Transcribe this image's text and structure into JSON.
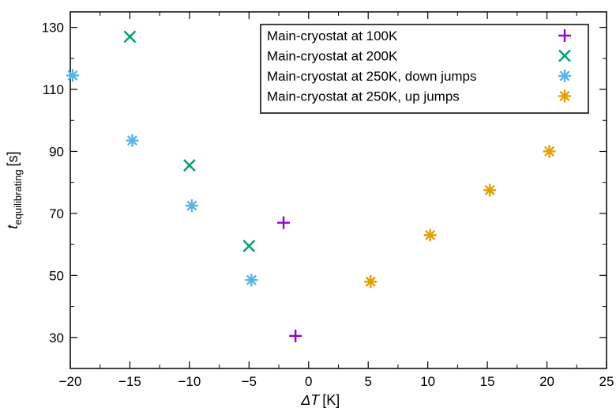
{
  "chart_data": {
    "type": "scatter",
    "xlabel": {
      "symbol": "ΔT",
      "unit": "[K]"
    },
    "ylabel": {
      "symbol": "t",
      "subscript": "equilibrating",
      "unit": "[s]"
    },
    "xlim": [
      -20,
      25
    ],
    "ylim": [
      20,
      135
    ],
    "x_ticks": [
      -20,
      -15,
      -10,
      -5,
      0,
      5,
      10,
      15,
      20,
      25
    ],
    "x_tick_labels": [
      "−20",
      "−15",
      "−10",
      "−5",
      "0",
      "5",
      "10",
      "15",
      "20",
      "25"
    ],
    "y_ticks": [
      30,
      50,
      70,
      90,
      110,
      130
    ],
    "y_tick_labels": [
      "30",
      "50",
      "70",
      "90",
      "110",
      "130"
    ],
    "legend_position": "top-right",
    "series": [
      {
        "name": "Main-cryostat at 100K",
        "marker": "plus",
        "color": "#9400d3",
        "points": [
          [
            -2.1,
            67
          ],
          [
            -1.1,
            30.5
          ]
        ]
      },
      {
        "name": "Main-cryostat at 200K",
        "marker": "cross",
        "color": "#009e73",
        "points": [
          [
            -15,
            127
          ],
          [
            -10,
            85.5
          ],
          [
            -5,
            59.5
          ]
        ]
      },
      {
        "name": "Main-cryostat at 250K, down jumps",
        "marker": "star",
        "color": "#56b4e9",
        "points": [
          [
            -19.8,
            114.5
          ],
          [
            -14.8,
            93.5
          ],
          [
            -9.8,
            72.5
          ],
          [
            -4.8,
            48.5
          ]
        ]
      },
      {
        "name": "Main-cryostat at 250K, up jumps",
        "marker": "star",
        "color": "#e69f00",
        "points": [
          [
            5.2,
            48
          ],
          [
            10.2,
            63
          ],
          [
            15.2,
            77.5
          ],
          [
            20.2,
            90
          ]
        ]
      }
    ]
  }
}
